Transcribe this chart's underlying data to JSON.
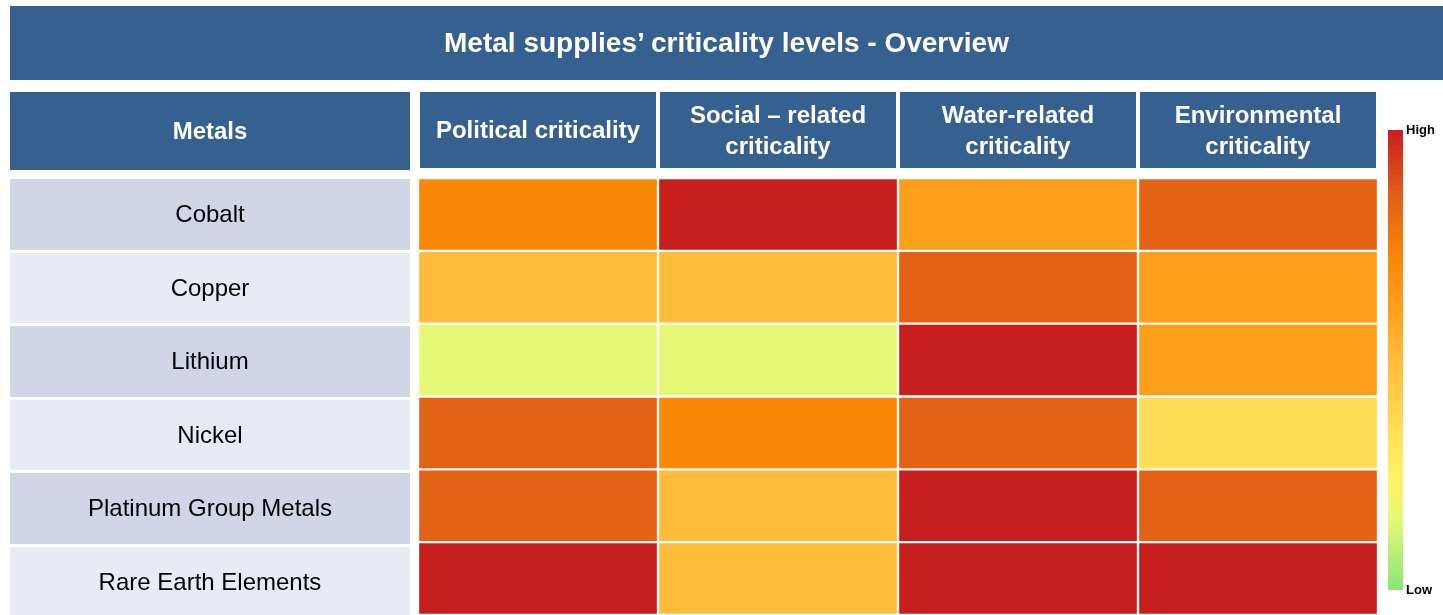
{
  "chart_data": {
    "type": "heatmap",
    "title": "Metal supplies’ criticality levels - Overview",
    "ylabel": "Metals",
    "categories": [
      "Political criticality",
      "Social – related criticality",
      "Water-related criticality",
      "Environmental criticality"
    ],
    "y_categories": [
      "Cobalt",
      "Copper",
      "Lithium",
      "Nickel",
      "Platinum Group Metals",
      "Rare Earth Elements"
    ],
    "cells": [
      [
        72,
        100,
        62,
        85
      ],
      [
        50,
        50,
        85,
        62
      ],
      [
        15,
        15,
        100,
        62
      ],
      [
        85,
        72,
        85,
        35
      ],
      [
        85,
        50,
        100,
        85
      ],
      [
        100,
        50,
        100,
        100
      ]
    ],
    "clim": [
      0,
      100
    ],
    "cticks": [
      {
        "value": 0,
        "label": "Low"
      },
      {
        "value": 100,
        "label": "High"
      }
    ]
  }
}
